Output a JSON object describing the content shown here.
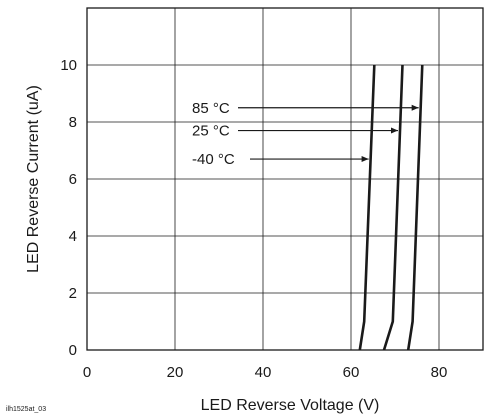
{
  "chart_data": {
    "type": "line",
    "xlabel": "LED Reverse Voltage (V)",
    "ylabel": "LED Reverse Current (uA)",
    "xlim": [
      0,
      90
    ],
    "ylim": [
      0,
      12
    ],
    "x_ticks": [
      "0",
      "20",
      "40",
      "60",
      "80"
    ],
    "y_ticks": [
      "0",
      "2",
      "4",
      "6",
      "8",
      "10"
    ],
    "grid": true,
    "series": [
      {
        "name": "-40 °C",
        "x": [
          62.0,
          63.0,
          65.3
        ],
        "y": [
          0.0,
          1.0,
          10.0
        ]
      },
      {
        "name": "25 °C",
        "x": [
          67.5,
          69.5,
          71.7
        ],
        "y": [
          0.0,
          1.0,
          10.0
        ]
      },
      {
        "name": "85 °C",
        "x": [
          73.0,
          74.0,
          76.2
        ],
        "y": [
          0.0,
          1.0,
          10.0
        ]
      }
    ],
    "annotations": [
      {
        "text": "85 °C",
        "series": "85 °C"
      },
      {
        "text": "25 °C",
        "series": "25 °C"
      },
      {
        "text": "-40 °C",
        "series": "-40 °C"
      }
    ],
    "figure_id": "ilh1525at_03"
  }
}
